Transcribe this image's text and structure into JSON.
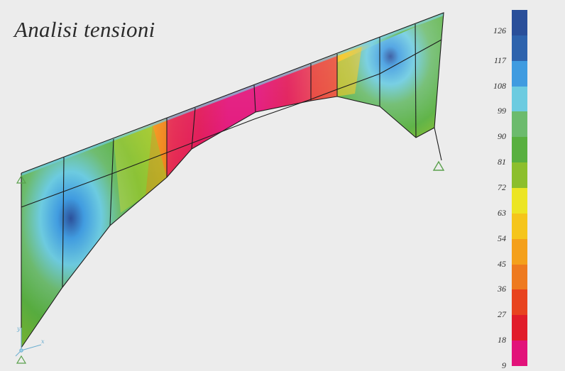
{
  "title": "Analisi tensioni",
  "legend": {
    "labels": [
      "126",
      "117",
      "108",
      "99",
      "90",
      "81",
      "72",
      "63",
      "54",
      "45",
      "36",
      "27",
      "18",
      "9"
    ],
    "colors": [
      "#2a4f9a",
      "#2e63ad",
      "#3f9be0",
      "#6ccbe0",
      "#6cbb6d",
      "#58b03f",
      "#8cbf2c",
      "#ece524",
      "#f5c51b",
      "#f4a01b",
      "#ee7a1f",
      "#e8431f",
      "#e11c2a",
      "#e2127a"
    ]
  },
  "supports": [
    "left-base-support",
    "left-top-support",
    "right-base-support"
  ],
  "axes": {
    "x": "x",
    "y": "y"
  },
  "icons": [
    "support-triangle-icon",
    "axis-triad-icon"
  ]
}
